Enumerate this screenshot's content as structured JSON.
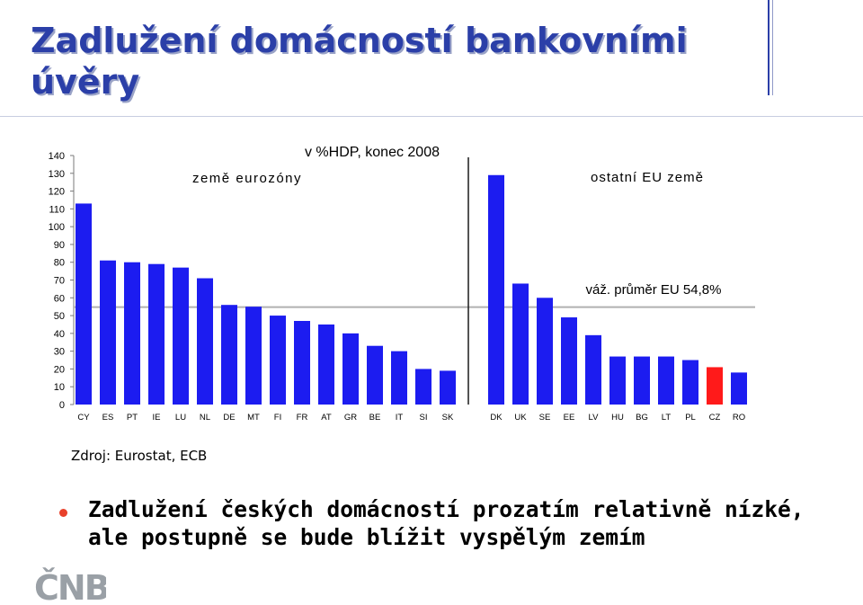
{
  "title": "Zadlužení domácností bankovními úvěry",
  "source": "Zdroj: Eurostat, ECB",
  "bullet": "Zadlužení českých domácností prozatím relativně nízké, ale postupně se bude blížit vyspělým zemím",
  "logo_text": "ČNB",
  "chart_data": {
    "type": "bar",
    "title": "v %HDP, konec 2008",
    "group_labels": [
      "země eurozóny",
      "ostatní EU země"
    ],
    "reference_line": {
      "label": "váž. průměr EU 54,8%",
      "value": 54.8
    },
    "ylim": [
      0,
      140
    ],
    "yticks": [
      0,
      10,
      20,
      30,
      40,
      50,
      60,
      70,
      80,
      90,
      100,
      110,
      120,
      130,
      140
    ],
    "categories": [
      "CY",
      "ES",
      "PT",
      "IE",
      "LU",
      "NL",
      "DE",
      "MT",
      "FI",
      "FR",
      "AT",
      "GR",
      "BE",
      "IT",
      "SI",
      "SK",
      "DK",
      "UK",
      "SE",
      "EE",
      "LV",
      "HU",
      "BG",
      "LT",
      "PL",
      "CZ",
      "RO"
    ],
    "values": [
      113,
      81,
      80,
      79,
      77,
      71,
      56,
      55,
      50,
      47,
      45,
      40,
      33,
      30,
      20,
      19,
      129,
      68,
      60,
      49,
      39,
      27,
      27,
      27,
      25,
      21,
      18
    ],
    "highlight": "CZ",
    "colors": {
      "bar": "#1c1cf0",
      "highlight": "#ff1a1a",
      "reference_line": "#b0b0b0",
      "separator": "#1a1a1a"
    }
  }
}
